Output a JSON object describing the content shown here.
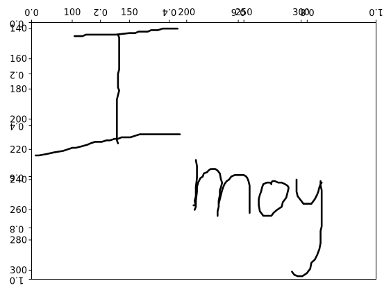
{
  "chart_data": {
    "type": "line",
    "title": "",
    "xlabel": "",
    "ylabel": "",
    "grid": false,
    "legend": "none",
    "ink_color": "#000000",
    "overlay_axes": {
      "top_tick_labels": [
        "0.0",
        "0.2",
        "0.4",
        "0.6",
        "0.8",
        "1.0"
      ],
      "left_tick_labels": [
        "0.0",
        "0.2",
        "0.4",
        "0.6",
        "0.8",
        "1.0"
      ]
    },
    "data_axes": {
      "x_tick_labels": [
        "100",
        "150",
        "200",
        "250",
        "300"
      ],
      "x_tick_values": [
        100,
        150,
        200,
        250,
        300
      ],
      "y_tick_labels": [
        "140",
        "160",
        "180",
        "200",
        "220",
        "240",
        "260",
        "280",
        "300"
      ],
      "y_tick_values": [
        140,
        160,
        180,
        200,
        220,
        240,
        260,
        280,
        300
      ],
      "xlim": [
        64.5,
        365.5
      ],
      "ylim": [
        136,
        306
      ],
      "y_inverted": true
    },
    "strokes": [
      {
        "points": [
          [
            102,
            145
          ],
          [
            104,
            145
          ],
          [
            106,
            145
          ],
          [
            109,
            145
          ],
          [
            112,
            144
          ],
          [
            114,
            144
          ],
          [
            123,
            144
          ],
          [
            130,
            144
          ],
          [
            135,
            144
          ],
          [
            138,
            144
          ],
          [
            150,
            143
          ],
          [
            155,
            143
          ],
          [
            158,
            142
          ],
          [
            166,
            142
          ],
          [
            169,
            141
          ],
          [
            175,
            141
          ],
          [
            179,
            140
          ],
          [
            182,
            140
          ],
          [
            184,
            140
          ],
          [
            192,
            140
          ]
        ]
      },
      {
        "points": [
          [
            140,
            144
          ],
          [
            141,
            146
          ],
          [
            141,
            150
          ],
          [
            141,
            156
          ],
          [
            141,
            162
          ],
          [
            141,
            167
          ],
          [
            140,
            170
          ],
          [
            140,
            175
          ],
          [
            140,
            179
          ],
          [
            141,
            181
          ],
          [
            140,
            184
          ],
          [
            139,
            187
          ],
          [
            139,
            191
          ],
          [
            139,
            198
          ],
          [
            139,
            204
          ],
          [
            139,
            210
          ],
          [
            139,
            214
          ],
          [
            140,
            216
          ]
        ]
      },
      {
        "points": [
          [
            68,
            224
          ],
          [
            71,
            224
          ],
          [
            78,
            223
          ],
          [
            84,
            222
          ],
          [
            92,
            221
          ],
          [
            96,
            220
          ],
          [
            100,
            219
          ],
          [
            103,
            219
          ],
          [
            108,
            218
          ],
          [
            113,
            217
          ],
          [
            116,
            216
          ],
          [
            120,
            215
          ],
          [
            124,
            215
          ],
          [
            126,
            215
          ],
          [
            130,
            214
          ],
          [
            133,
            214
          ],
          [
            137,
            213
          ],
          [
            140,
            213
          ],
          [
            143,
            212
          ],
          [
            147,
            212
          ],
          [
            151,
            212
          ],
          [
            155,
            211
          ],
          [
            159,
            210
          ],
          [
            165,
            210
          ],
          [
            176,
            210
          ],
          [
            189,
            210
          ],
          [
            194,
            210
          ]
        ]
      },
      {
        "points": [
          [
            208,
            227
          ],
          [
            209,
            231
          ],
          [
            209,
            239
          ],
          [
            208,
            245
          ],
          [
            208,
            251
          ],
          [
            207,
            254
          ],
          [
            208,
            258
          ],
          [
            207,
            260
          ]
        ]
      },
      {
        "points": [
          [
            206,
            257
          ],
          [
            208,
            257
          ],
          [
            208,
            254
          ],
          [
            209,
            248
          ],
          [
            209,
            245
          ],
          [
            210,
            242
          ],
          [
            212,
            239
          ],
          [
            214,
            238
          ],
          [
            215,
            236
          ],
          [
            218,
            235
          ],
          [
            219,
            234
          ],
          [
            221,
            233
          ],
          [
            223,
            233
          ],
          [
            225,
            233
          ],
          [
            227,
            234
          ],
          [
            229,
            236
          ],
          [
            230,
            240
          ],
          [
            231,
            242
          ],
          [
            230,
            245
          ],
          [
            229,
            247
          ],
          [
            229,
            250
          ],
          [
            228,
            254
          ],
          [
            228,
            258
          ],
          [
            227,
            261
          ],
          [
            227,
            263
          ],
          [
            227,
            264
          ]
        ]
      },
      {
        "points": [
          [
            228,
            256
          ],
          [
            229,
            253
          ],
          [
            230,
            250
          ],
          [
            231,
            247
          ],
          [
            232,
            245
          ],
          [
            233,
            243
          ],
          [
            235,
            241
          ],
          [
            237,
            240
          ],
          [
            239,
            238
          ],
          [
            242,
            237
          ],
          [
            246,
            237
          ],
          [
            250,
            237
          ],
          [
            252,
            238
          ],
          [
            253,
            239
          ],
          [
            254,
            241
          ],
          [
            255,
            244
          ],
          [
            255,
            253
          ],
          [
            255,
            258
          ],
          [
            255,
            262
          ]
        ]
      },
      {
        "points": [
          [
            274,
            243
          ],
          [
            274,
            242
          ],
          [
            275,
            241
          ],
          [
            277,
            241
          ],
          [
            280,
            242
          ],
          [
            283,
            242
          ],
          [
            286,
            243
          ],
          [
            288,
            244
          ],
          [
            289,
            245
          ],
          [
            289,
            246
          ],
          [
            288,
            249
          ],
          [
            287,
            252
          ],
          [
            284,
            255
          ],
          [
            283,
            258
          ],
          [
            279,
            260
          ],
          [
            276,
            262
          ],
          [
            274,
            264
          ],
          [
            271,
            264
          ],
          [
            267,
            264
          ],
          [
            264,
            261
          ],
          [
            263,
            257
          ],
          [
            263,
            253
          ],
          [
            264,
            250
          ],
          [
            265,
            248
          ],
          [
            266,
            245
          ],
          [
            267,
            243
          ],
          [
            270,
            242
          ],
          [
            273,
            242
          ],
          [
            274,
            243
          ]
        ]
      },
      {
        "points": [
          [
            296,
            240
          ],
          [
            296,
            244
          ],
          [
            296,
            248
          ],
          [
            297,
            251
          ],
          [
            298,
            252
          ],
          [
            300,
            254
          ],
          [
            302,
            256
          ],
          [
            306,
            256
          ],
          [
            309,
            256
          ],
          [
            312,
            253
          ],
          [
            314,
            250
          ],
          [
            315,
            248
          ],
          [
            316,
            245
          ],
          [
            317,
            243
          ],
          [
            318,
            242
          ]
        ]
      },
      {
        "points": [
          [
            317,
            241
          ],
          [
            317,
            244
          ],
          [
            318,
            247
          ],
          [
            318,
            251
          ],
          [
            318,
            255
          ],
          [
            318,
            259
          ],
          [
            318,
            263
          ],
          [
            318,
            267
          ],
          [
            318,
            271
          ],
          [
            317,
            274
          ],
          [
            317,
            278
          ],
          [
            317,
            282
          ],
          [
            316,
            286
          ],
          [
            314,
            290
          ],
          [
            312,
            293
          ],
          [
            309,
            295
          ],
          [
            308,
            299
          ],
          [
            305,
            302
          ],
          [
            303,
            303
          ],
          [
            301,
            304
          ],
          [
            297,
            304
          ],
          [
            294,
            303
          ],
          [
            292,
            301
          ]
        ]
      }
    ]
  }
}
